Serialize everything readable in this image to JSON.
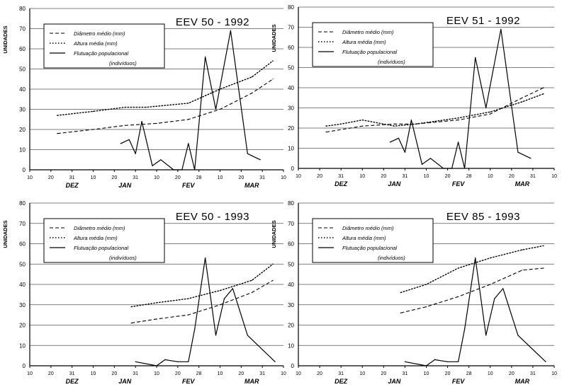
{
  "figure": {
    "ylabel": "UNIDADES"
  },
  "legend_labels": {
    "diametro": "Diâmetro médio (mm)",
    "altura": "Altura média (mm)",
    "flutuacao": "Flutuação populacional",
    "flutuacao2": "(indivíduos)"
  },
  "chart_data": [
    {
      "type": "line",
      "title": "EEV 50 - 1992",
      "ylabel": "UNIDADES",
      "ylim": [
        0,
        80
      ],
      "yticks": [
        0,
        10,
        20,
        30,
        40,
        50,
        60,
        70,
        80
      ],
      "xticks": [
        "10",
        "20",
        "31",
        "10",
        "20",
        "31",
        "10",
        "20",
        "28",
        "10",
        "20",
        "31",
        "10"
      ],
      "months": [
        "DEZ",
        "JAN",
        "FEV",
        "MAR"
      ],
      "grid": true,
      "series": [
        {
          "name": "Diâmetro médio (mm)",
          "style": "dashed",
          "x": [
            1.3,
            3,
            4.5,
            6,
            7.5,
            9,
            10.5,
            11.5
          ],
          "y": [
            18,
            20,
            22,
            23,
            25,
            30,
            38,
            45
          ]
        },
        {
          "name": "Altura média (mm)",
          "style": "dotted",
          "x": [
            1.3,
            3,
            4.5,
            5.5,
            7.5,
            9,
            10.5,
            11.5
          ],
          "y": [
            27,
            29,
            31,
            31,
            33,
            40,
            46,
            54
          ]
        },
        {
          "name": "Flutuação populacional (indivíduos)",
          "style": "solid",
          "x": [
            4.3,
            4.7,
            5.0,
            5.3,
            5.8,
            6.2,
            6.8,
            7.2,
            7.5,
            7.8,
            8.3,
            8.8,
            9.5,
            10.3,
            10.9
          ],
          "y": [
            13,
            15,
            8,
            24,
            2,
            5,
            0,
            0,
            13,
            0,
            56,
            30,
            69,
            8,
            5
          ]
        }
      ]
    },
    {
      "type": "line",
      "title": "EEV 51 - 1992",
      "ylabel": "UNIDADES",
      "ylim": [
        0,
        80
      ],
      "yticks": [
        0,
        10,
        20,
        30,
        40,
        50,
        60,
        70,
        80
      ],
      "xticks": [
        "10",
        "20",
        "31",
        "10",
        "20",
        "31",
        "10",
        "20",
        "28",
        "10",
        "20",
        "31",
        "10"
      ],
      "months": [
        "DEZ",
        "JAN",
        "FEV",
        "MAR"
      ],
      "grid": true,
      "series": [
        {
          "name": "Diâmetro médio (mm)",
          "style": "dashed",
          "x": [
            1.3,
            3,
            4.5,
            5.5,
            7.5,
            9,
            10.5,
            11.5
          ],
          "y": [
            18,
            21,
            22,
            22,
            24,
            27,
            35,
            40
          ]
        },
        {
          "name": "Altura média (mm)",
          "style": "dotted",
          "x": [
            1.3,
            2,
            3,
            4.5,
            5.5,
            7.5,
            9,
            10.5,
            11.5
          ],
          "y": [
            21,
            22,
            24,
            21,
            22,
            25,
            28,
            33,
            37
          ]
        },
        {
          "name": "Flutuação populacional (indivíduos)",
          "style": "solid",
          "x": [
            4.3,
            4.7,
            5.0,
            5.3,
            5.8,
            6.2,
            6.8,
            7.2,
            7.5,
            7.8,
            8.3,
            8.8,
            9.5,
            10.3,
            10.9
          ],
          "y": [
            13,
            15,
            8,
            24,
            2,
            5,
            0,
            0,
            13,
            0,
            55,
            30,
            69,
            8,
            5
          ]
        }
      ]
    },
    {
      "type": "line",
      "title": "EEV 50 - 1993",
      "ylabel": "UNIDADES",
      "ylim": [
        0,
        80
      ],
      "yticks": [
        0,
        10,
        20,
        30,
        40,
        50,
        60,
        70,
        80
      ],
      "xticks": [
        "10",
        "20",
        "31",
        "10",
        "20",
        "31",
        "10",
        "20",
        "28",
        "10",
        "20",
        "31",
        "10"
      ],
      "months": [
        "DEZ",
        "JAN",
        "FEV",
        "MAR"
      ],
      "grid": true,
      "series": [
        {
          "name": "Diâmetro médio (mm)",
          "style": "dashed",
          "x": [
            4.8,
            6,
            7.5,
            9,
            10.5,
            11.5
          ],
          "y": [
            21,
            23,
            25,
            30,
            36,
            42
          ]
        },
        {
          "name": "Altura média (mm)",
          "style": "dotted",
          "x": [
            4.8,
            6,
            7.5,
            9,
            10.5,
            11.5
          ],
          "y": [
            29,
            31,
            33,
            37,
            42,
            50
          ]
        },
        {
          "name": "Flutuação populacional (indivíduos)",
          "style": "solid",
          "x": [
            5.0,
            6.0,
            6.4,
            7.0,
            7.5,
            7.8,
            8.3,
            8.8,
            9.2,
            9.6,
            10.3,
            10.8,
            11.6
          ],
          "y": [
            2,
            0,
            3,
            2,
            2,
            18,
            53,
            15,
            33,
            38,
            15,
            10,
            2
          ]
        }
      ]
    },
    {
      "type": "line",
      "title": "EEV 85 - 1993",
      "ylabel": "UNIDADES",
      "ylim": [
        0,
        80
      ],
      "yticks": [
        0,
        10,
        20,
        30,
        40,
        50,
        60,
        70,
        80
      ],
      "xticks": [
        "10",
        "20",
        "31",
        "10",
        "20",
        "31",
        "10",
        "20",
        "28",
        "10",
        "20",
        "31",
        "10"
      ],
      "months": [
        "DEZ",
        "JAN",
        "FEV",
        "MAR"
      ],
      "grid": true,
      "series": [
        {
          "name": "Diâmetro médio (mm)",
          "style": "dashed",
          "x": [
            4.8,
            6,
            7.5,
            9,
            10.5,
            11.5
          ],
          "y": [
            26,
            29,
            34,
            40,
            47,
            48
          ]
        },
        {
          "name": "Altura média (mm)",
          "style": "dotted",
          "x": [
            4.8,
            6,
            7.5,
            9,
            10.5,
            11.5
          ],
          "y": [
            36,
            40,
            48,
            53,
            57,
            59
          ]
        },
        {
          "name": "Flutuação populacional (indivíduos)",
          "style": "solid",
          "x": [
            5.0,
            6.0,
            6.4,
            7.0,
            7.5,
            7.8,
            8.3,
            8.8,
            9.2,
            9.6,
            10.3,
            10.8,
            11.6
          ],
          "y": [
            2,
            0,
            3,
            2,
            2,
            18,
            53,
            15,
            33,
            38,
            15,
            10,
            2
          ]
        }
      ]
    }
  ]
}
